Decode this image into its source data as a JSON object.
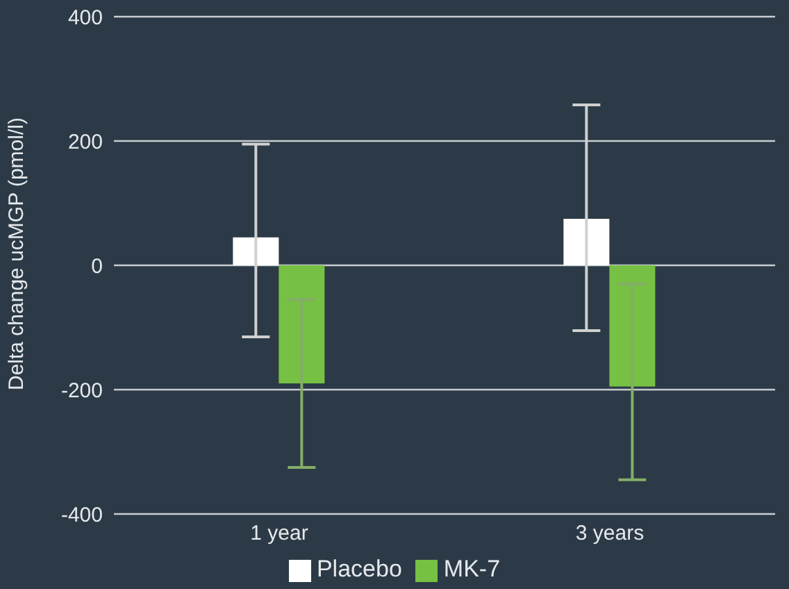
{
  "chart_data": {
    "type": "bar",
    "ylabel": "Delta change ucMGP (pmol/l)",
    "categories": [
      "1 year",
      "3 years"
    ],
    "series": [
      {
        "name": "Placebo",
        "color": "#ffffff",
        "values": [
          45,
          75
        ],
        "errors": [
          [
            -115,
            195
          ],
          [
            -105,
            258
          ]
        ]
      },
      {
        "name": "MK-7",
        "color": "#76c043",
        "values": [
          -190,
          -195
        ],
        "errors": [
          [
            -325,
            -55
          ],
          [
            -345,
            -30
          ]
        ]
      }
    ],
    "ylim": [
      -400,
      400
    ],
    "yticks": [
      -400,
      -200,
      0,
      200,
      400
    ],
    "grid": "y",
    "legend": "bottom"
  }
}
